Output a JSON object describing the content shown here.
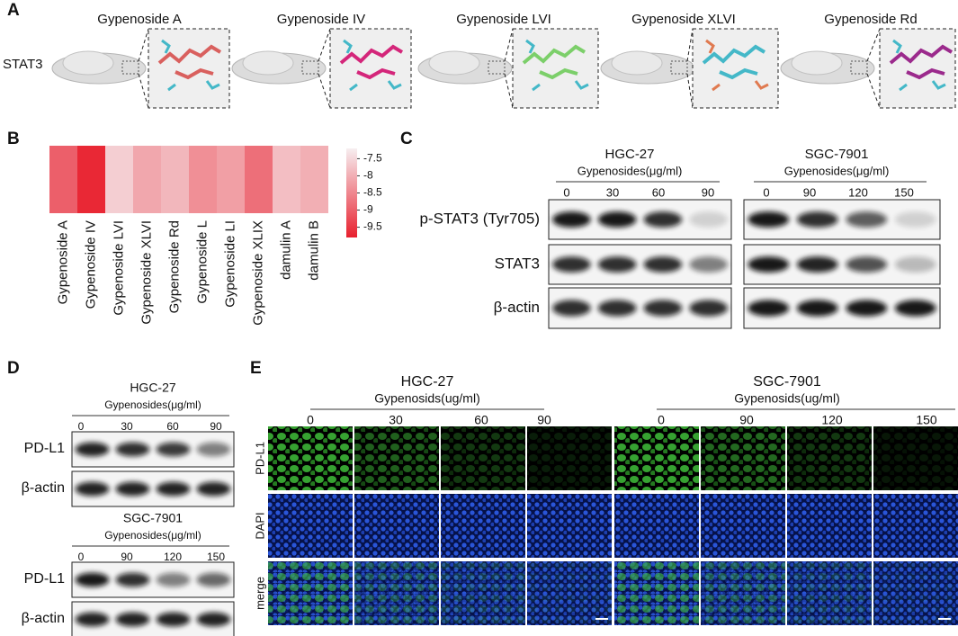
{
  "panel_a": {
    "label": "A",
    "row_label": "STAT3",
    "compounds": [
      "Gypenoside A",
      "Gypenoside IV",
      "Gypenoside LVI",
      "Gypenoside XLVI",
      "Gypenoside Rd"
    ]
  },
  "chart_data": {
    "type": "heatmap",
    "panel_label": "B",
    "categories": [
      "Gypenoside A",
      "Gypenoside IV",
      "Gypenoside LVI",
      "Gypenoside XLVI",
      "Gypenoside Rd",
      "Gypenoside L",
      "Gypenoside LI",
      "Gypenoside XLIX",
      "damulin A",
      "damulin B"
    ],
    "values": [
      -9.0,
      -9.7,
      -7.6,
      -8.1,
      -7.9,
      -8.4,
      -8.2,
      -8.8,
      -7.8,
      -8.0
    ],
    "clim": [
      -9.8,
      -7.2
    ],
    "cticks": [
      -7.5,
      -8,
      -8.5,
      -9,
      -9.5
    ],
    "colors": [
      "#f6eef0",
      "#e8202e"
    ]
  },
  "panel_c": {
    "label": "C",
    "groups": [
      {
        "cell_line": "HGC-27",
        "treatment": "Gypenosides(μg/ml)",
        "doses": [
          0,
          30,
          60,
          90
        ]
      },
      {
        "cell_line": "SGC-7901",
        "treatment": "Gypenosides(μg/ml)",
        "doses": [
          0,
          90,
          120,
          150
        ]
      }
    ],
    "rows": [
      "p-STAT3 (Tyr705)",
      "STAT3",
      "β-actin"
    ]
  },
  "panel_d": {
    "label": "D",
    "blots": [
      {
        "cell_line": "HGC-27",
        "treatment": "Gypenosides(μg/ml)",
        "doses": [
          0,
          30,
          60,
          90
        ],
        "rows": [
          "PD-L1",
          "β-actin"
        ]
      },
      {
        "cell_line": "SGC-7901",
        "treatment": "Gypenosides(μg/ml)",
        "doses": [
          0,
          90,
          120,
          150
        ],
        "rows": [
          "PD-L1",
          "β-actin"
        ]
      }
    ]
  },
  "panel_e": {
    "label": "E",
    "groups": [
      {
        "cell_line": "HGC-27",
        "treatment": "Gypenosids(ug/ml)",
        "doses": [
          0,
          30,
          60,
          90
        ]
      },
      {
        "cell_line": "SGC-7901",
        "treatment": "Gypenosids(ug/ml)",
        "doses": [
          0,
          90,
          120,
          150
        ]
      }
    ],
    "rows": [
      "PD-L1",
      "DAPI",
      "merge"
    ]
  }
}
